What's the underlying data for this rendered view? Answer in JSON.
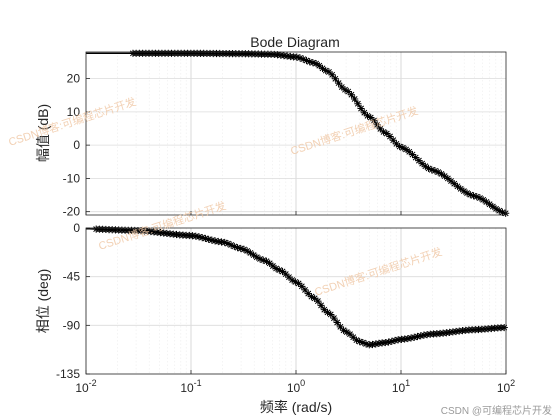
{
  "chart_data": {
    "type": "line",
    "title": "Bode Diagram",
    "xlabel": "频率  (rad/s)",
    "x_scale": "log",
    "xlim": [
      0.01,
      100
    ],
    "x_ticks": [
      "10^-2",
      "10^-1",
      "10^0",
      "10^1",
      "10^2"
    ],
    "grid": true,
    "marker": "*",
    "panels": [
      {
        "name": "magnitude",
        "ylabel": "幅值 (dB)",
        "ylim": [
          -21,
          28
        ],
        "y_ticks": [
          20,
          10,
          0,
          -10,
          -20
        ],
        "series": [
          {
            "x": [
              0.01,
              0.03,
              0.1,
              0.3,
              0.6,
              1,
              1.5,
              2,
              3,
              5,
              7,
              10,
              20,
              50,
              100
            ],
            "y": [
              27.6,
              27.6,
              27.6,
              27.5,
              27.3,
              26.5,
              24.7,
              22.2,
              16.5,
              8.5,
              3.8,
              -0.6,
              -7.5,
              -15.3,
              -20.5
            ]
          }
        ]
      },
      {
        "name": "phase",
        "ylabel": "相位 (deg)",
        "ylim": [
          -135,
          0
        ],
        "y_ticks": [
          0,
          -45,
          -90,
          -135
        ],
        "series": [
          {
            "x": [
              0.01,
              0.03,
              0.1,
              0.2,
              0.3,
              0.5,
              0.7,
              1,
              1.5,
              2,
              3,
              4,
              5,
              7,
              10,
              20,
              50,
              100
            ],
            "y": [
              -0.8,
              -2.3,
              -7,
              -13,
              -19,
              -30,
              -39,
              -50,
              -65,
              -78,
              -96,
              -105,
              -108,
              -106,
              -103,
              -98,
              -94,
              -92
            ]
          }
        ]
      }
    ]
  },
  "watermarks": [
    "CSDN博客:可编程芯片开发",
    "CSDN博客:可编程芯片开发",
    "CSDN博客:可编程芯片开发",
    "CSDN博客:可编程芯片开发"
  ],
  "credit": "CSDN @可编程芯片开发",
  "colors": {
    "line": "#000000",
    "grid": "#dcdcdc",
    "axis": "#262626",
    "watermark": "#f0c9a8"
  }
}
